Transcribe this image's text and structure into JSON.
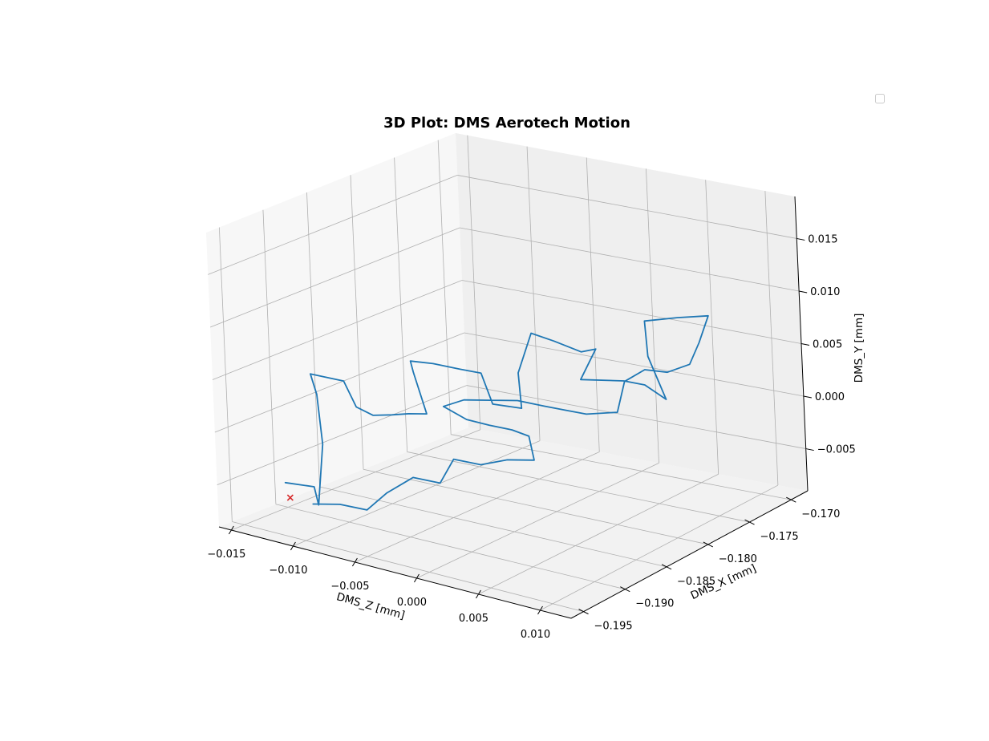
{
  "chart_data": {
    "type": "line",
    "projection": "3d",
    "title": "3D Plot: DMS Aerotech Motion",
    "xlabel": "DMS_Z [mm]",
    "ylabel": "DMS_X [mm]",
    "zlabel": "DMS_Y [mm]",
    "xticks": [
      "−0.015",
      "−0.010",
      "−0.005",
      "0.000",
      "0.005",
      "0.010"
    ],
    "yticks": [
      "−0.195",
      "−0.190",
      "−0.185",
      "−0.180",
      "−0.175",
      "−0.170"
    ],
    "zticks": [
      "−0.005",
      "0.000",
      "0.005",
      "0.010",
      "0.015"
    ],
    "grid": true,
    "legend": "top-right",
    "legend_entries": [],
    "series_color": "#1f77b4",
    "marker_color": "#d62728",
    "marker": {
      "symbol": "x"
    },
    "path_estimated": [
      [
        -0.0125,
        -0.1935,
        -0.005
      ],
      [
        -0.0105,
        -0.193,
        -0.005
      ],
      [
        -0.0095,
        -0.194,
        -0.006
      ],
      [
        -0.01,
        -0.1925,
        -0.001
      ],
      [
        -0.011,
        -0.1915,
        0.003
      ],
      [
        -0.0118,
        -0.191,
        0.0045
      ],
      [
        -0.0098,
        -0.19,
        0.004
      ],
      [
        -0.0092,
        -0.1895,
        0.0015
      ],
      [
        -0.0082,
        -0.189,
        0.0008
      ],
      [
        -0.007,
        -0.1885,
        0.001
      ],
      [
        -0.006,
        -0.188,
        0.0012
      ],
      [
        -0.0052,
        -0.187,
        0.001
      ],
      [
        -0.0058,
        -0.1875,
        0.005
      ],
      [
        -0.006,
        -0.1875,
        0.006
      ],
      [
        -0.0045,
        -0.187,
        0.006
      ],
      [
        -0.003,
        -0.186,
        0.0055
      ],
      [
        -0.002,
        -0.185,
        0.005
      ],
      [
        -0.0015,
        -0.1845,
        0.002
      ],
      [
        0.0005,
        -0.184,
        0.002
      ],
      [
        0.0,
        -0.1835,
        0.005
      ],
      [
        0.0005,
        -0.1825,
        0.0085
      ],
      [
        0.002,
        -0.182,
        0.008
      ],
      [
        0.0035,
        -0.181,
        0.007
      ],
      [
        0.004,
        -0.18,
        0.007
      ],
      [
        0.003,
        -0.1805,
        0.004
      ],
      [
        0.0055,
        -0.179,
        0.004
      ],
      [
        0.0065,
        -0.178,
        0.0035
      ],
      [
        0.0075,
        -0.177,
        0.002
      ],
      [
        0.0065,
        -0.1775,
        0.006
      ],
      [
        0.006,
        -0.177,
        0.009
      ],
      [
        0.008,
        -0.176,
        0.0095
      ],
      [
        0.0095,
        -0.1745,
        0.0095
      ],
      [
        0.009,
        -0.175,
        0.007
      ],
      [
        0.0085,
        -0.1755,
        0.005
      ],
      [
        0.007,
        -0.176,
        0.004
      ],
      [
        0.0055,
        -0.1765,
        0.004
      ],
      [
        0.0045,
        -0.1775,
        0.003
      ],
      [
        0.0045,
        -0.1785,
        0.0005
      ],
      [
        0.003,
        -0.18,
        0.0005
      ],
      [
        0.002,
        -0.181,
        0.001
      ],
      [
        0.001,
        -0.182,
        0.0015
      ],
      [
        -0.0005,
        -0.183,
        0.002
      ],
      [
        -0.002,
        -0.184,
        0.002
      ],
      [
        -0.0035,
        -0.185,
        0.002
      ],
      [
        -0.0045,
        -0.186,
        0.0015
      ],
      [
        -0.003,
        -0.1855,
        0.0005
      ],
      [
        -0.0015,
        -0.185,
        0.0002
      ],
      [
        0.0,
        -0.1845,
        0.0
      ],
      [
        0.001,
        -0.184,
        -0.0005
      ],
      [
        0.001,
        -0.1835,
        -0.003
      ],
      [
        -0.0005,
        -0.1845,
        -0.003
      ],
      [
        -0.002,
        -0.1855,
        -0.0035
      ],
      [
        -0.0035,
        -0.1865,
        -0.003
      ],
      [
        -0.004,
        -0.1875,
        -0.005
      ],
      [
        -0.0055,
        -0.1885,
        -0.0045
      ],
      [
        -0.007,
        -0.1895,
        -0.006
      ],
      [
        -0.008,
        -0.1905,
        -0.0075
      ],
      [
        -0.0095,
        -0.1915,
        -0.007
      ],
      [
        -0.011,
        -0.1925,
        -0.007
      ]
    ],
    "marker_point_estimated": [
      -0.0118,
      -0.194,
      -0.006
    ]
  }
}
